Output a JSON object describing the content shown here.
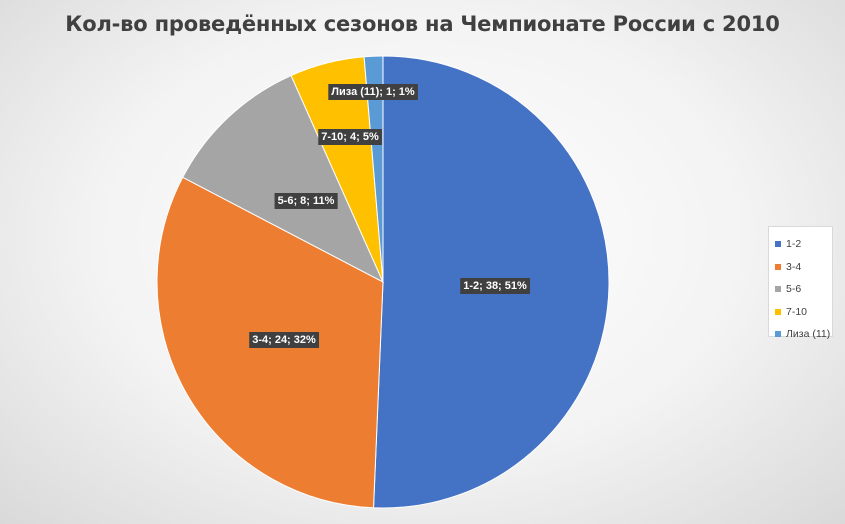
{
  "chart_data": {
    "type": "pie",
    "title": "Кол-во проведённых сезонов на Чемпионате России с 2010",
    "categories": [
      "1-2",
      "3-4",
      "5-6",
      "7-10",
      "Лиза (11)"
    ],
    "values": [
      38,
      24,
      8,
      4,
      1
    ],
    "percentages": [
      51,
      32,
      11,
      5,
      1
    ],
    "colors": [
      "#4472C4",
      "#ED7D31",
      "#A5A5A5",
      "#FFC000",
      "#5B9BD5"
    ],
    "data_labels": [
      "1-2; 38; 51%",
      "3-4; 24; 32%",
      "5-6; 8; 11%",
      "7-10; 4; 5%",
      "Лиза (11); 1; 1%"
    ],
    "legend_position": "right",
    "start_angle": "top, clockwise"
  }
}
